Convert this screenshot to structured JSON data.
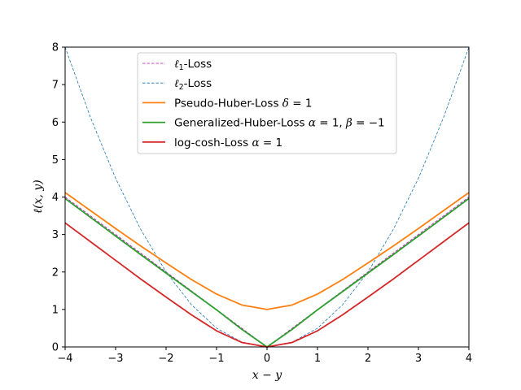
{
  "chart_data": {
    "type": "line",
    "xlabel": "x − y",
    "ylabel": "ℓ(x, y)",
    "xlim": [
      -4,
      4
    ],
    "ylim": [
      0,
      8
    ],
    "xticks": [
      -4,
      -3,
      -2,
      -1,
      0,
      1,
      2,
      3,
      4
    ],
    "xtick_labels": [
      "−4",
      "−3",
      "−2",
      "−1",
      "0",
      "1",
      "2",
      "3",
      "4"
    ],
    "yticks": [
      0,
      1,
      2,
      3,
      4,
      5,
      6,
      7,
      8
    ],
    "ytick_labels": [
      "0",
      "1",
      "2",
      "3",
      "4",
      "5",
      "6",
      "7",
      "8"
    ],
    "grid": false,
    "legend_position": "top-center",
    "x": [
      -4,
      -3.5,
      -3,
      -2.5,
      -2,
      -1.5,
      -1,
      -0.5,
      0,
      0.5,
      1,
      1.5,
      2,
      2.5,
      3,
      3.5,
      4
    ],
    "series": [
      {
        "name": "ℓ1-Loss",
        "color": "#c000c0",
        "style": "dashed",
        "values": [
          4,
          3.5,
          3,
          2.5,
          2,
          1.5,
          1,
          0.5,
          0,
          0.5,
          1,
          1.5,
          2,
          2.5,
          3,
          3.5,
          4
        ]
      },
      {
        "name": "ℓ2-Loss",
        "color": "#1f77b4",
        "style": "dashed",
        "values": [
          8,
          6.13,
          4.5,
          3.13,
          2,
          1.13,
          0.5,
          0.13,
          0,
          0.13,
          0.5,
          1.13,
          2,
          3.13,
          4.5,
          6.13,
          8
        ]
      },
      {
        "name": "Pseudo-Huber-Loss δ = 1",
        "color": "#ff7f0e",
        "style": "solid",
        "values": [
          4.12,
          3.64,
          3.16,
          2.69,
          2.24,
          1.8,
          1.41,
          1.12,
          1,
          1.12,
          1.41,
          1.8,
          2.24,
          2.69,
          3.16,
          3.64,
          4.12
        ]
      },
      {
        "name": "Generalized-Huber-Loss α = 1, β = −1",
        "color": "#2ca02c",
        "style": "solid",
        "values": [
          3.96,
          3.46,
          2.96,
          2.46,
          1.97,
          1.48,
          0.99,
          0.47,
          0,
          0.47,
          0.99,
          1.48,
          1.97,
          2.46,
          2.96,
          3.46,
          3.96
        ]
      },
      {
        "name": "log-cosh-Loss α = 1",
        "color": "#d62728",
        "style": "solid",
        "values": [
          3.31,
          2.81,
          2.31,
          1.81,
          1.33,
          0.86,
          0.43,
          0.12,
          0,
          0.12,
          0.43,
          0.86,
          1.33,
          1.81,
          2.31,
          2.81,
          3.31
        ]
      }
    ]
  },
  "legend": {
    "items": [
      {
        "prefix": "",
        "math": "ℓ",
        "sub": "1",
        "suffix": "-Loss"
      },
      {
        "prefix": "",
        "math": "ℓ",
        "sub": "2",
        "suffix": "-Loss"
      },
      {
        "prefix": "Pseudo-Huber-Loss ",
        "math": "δ",
        "sub": "",
        "suffix": " = 1"
      },
      {
        "prefix": "Generalized-Huber-Loss ",
        "math": "α",
        "sub": "",
        "suffix": " = 1, ",
        "math2": "β",
        "suffix2": " = −1"
      },
      {
        "prefix": "log-cosh-Loss ",
        "math": "α",
        "sub": "",
        "suffix": " = 1"
      }
    ]
  }
}
